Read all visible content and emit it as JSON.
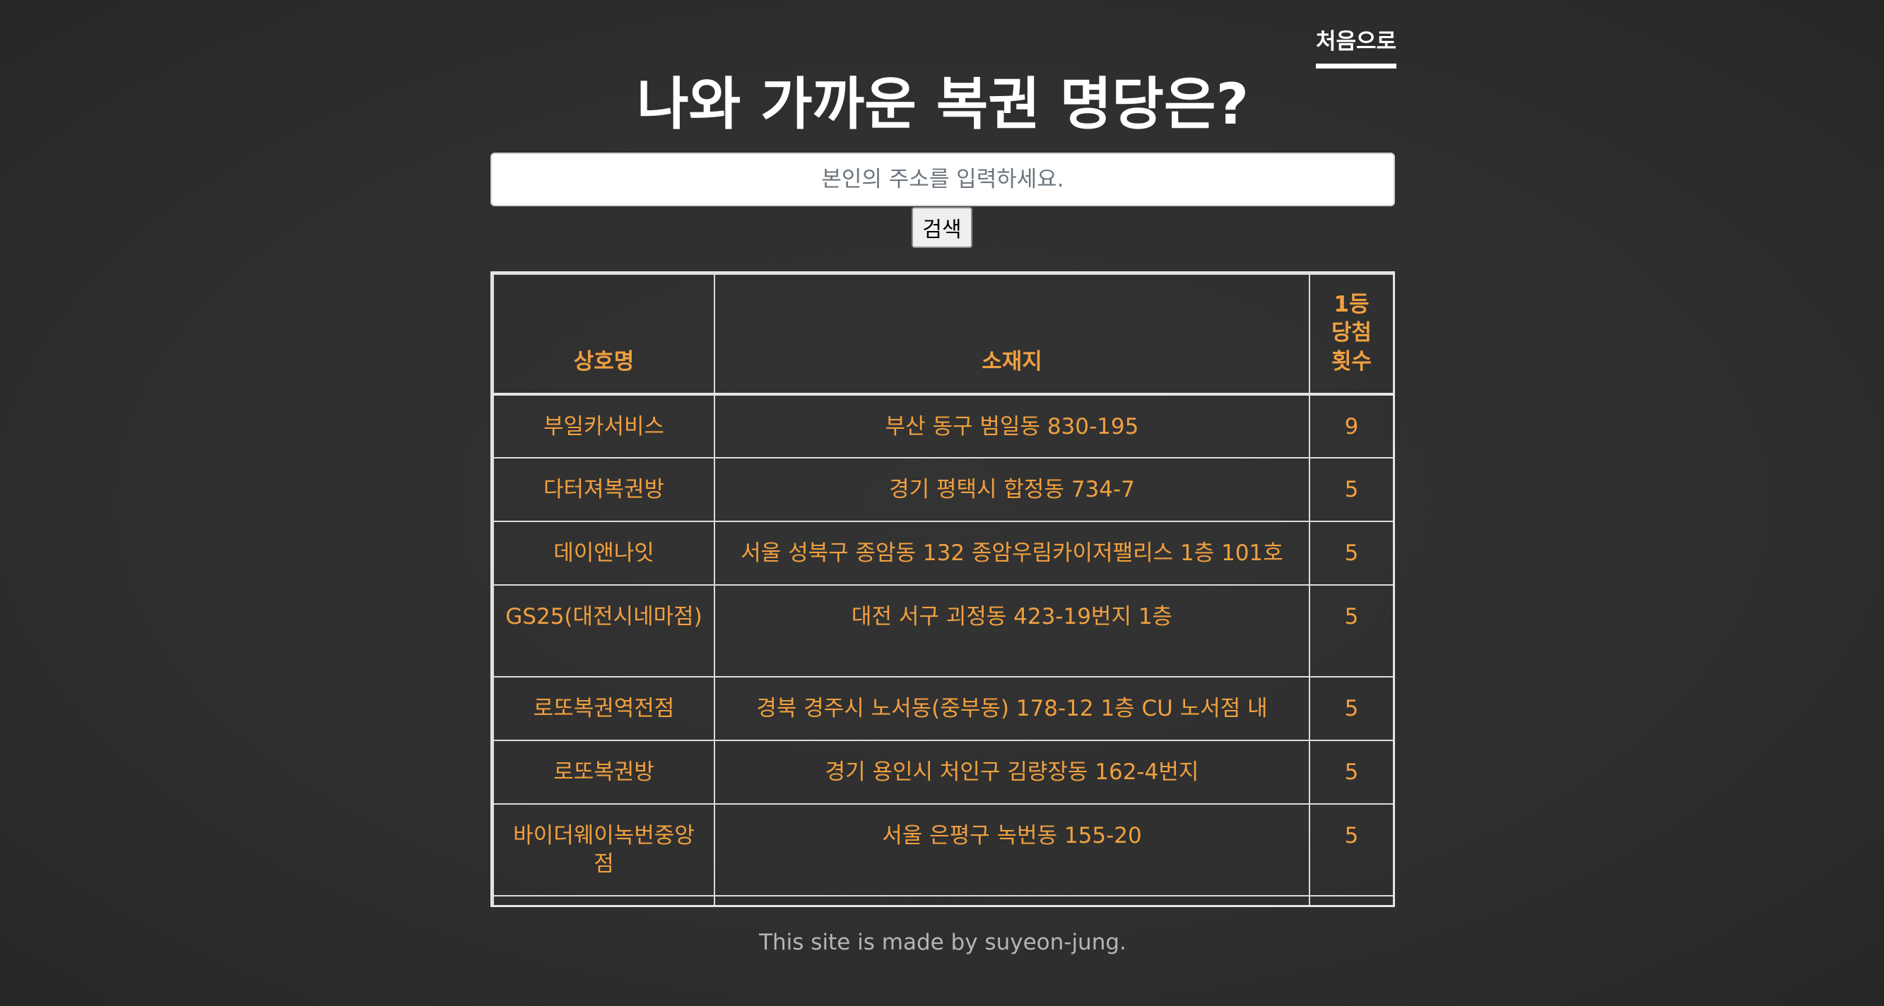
{
  "nav": {
    "home_label": "처음으로"
  },
  "page": {
    "title": "나와 가까운 복권 명당은?"
  },
  "search": {
    "placeholder": "본인의 주소를 입력하세요.",
    "value": "",
    "button_label": "검색"
  },
  "table": {
    "headers": {
      "name": "상호명",
      "address": "소재지",
      "count": "1등 당첨 횟수"
    },
    "rows": [
      {
        "name": "부일카서비스",
        "address": "부산 동구 범일동 830-195",
        "count": "9"
      },
      {
        "name": "다터져복권방",
        "address": "경기 평택시 합정동 734-7",
        "count": "5"
      },
      {
        "name": "데이앤나잇",
        "address": "서울 성북구 종암동 132 종암우림카이저팰리스 1층 101호",
        "count": "5"
      },
      {
        "name": "GS25(대전시네마점)",
        "address": "대전 서구 괴정동 423-19번지 1층",
        "count": "5"
      },
      {
        "name": "로또복권역전점",
        "address": "경북 경주시 노서동(중부동) 178-12 1층 CU 노서점 내",
        "count": "5"
      },
      {
        "name": "로또복권방",
        "address": "경기 용인시 처인구 김량장동 162-4번지",
        "count": "5"
      },
      {
        "name": "바이더웨이녹번중앙점",
        "address": "서울 은평구 녹번동 155-20",
        "count": "5"
      }
    ]
  },
  "footer": {
    "text": "This site is made by suyeon-jung."
  }
}
